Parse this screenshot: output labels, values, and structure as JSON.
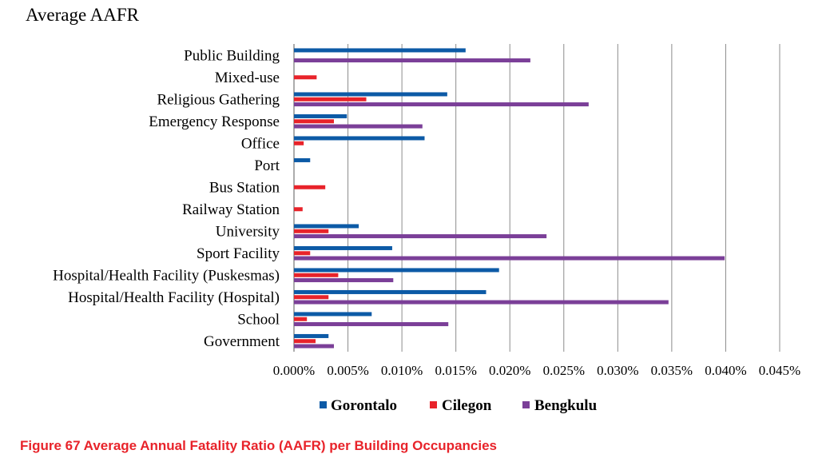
{
  "caption": "Figure 67 Average Annual Fatality Ratio (AAFR) per Building Occupancies",
  "chart_data": {
    "type": "bar",
    "orientation": "horizontal",
    "title": "Average AAFR",
    "xlim": [
      0,
      0.045
    ],
    "xticks": [
      0,
      0.005,
      0.01,
      0.015,
      0.02,
      0.025,
      0.03,
      0.035,
      0.04,
      0.045
    ],
    "xtick_labels": [
      "0.000%",
      "0.005%",
      "0.010%",
      "0.015%",
      "0.020%",
      "0.025%",
      "0.030%",
      "0.035%",
      "0.040%",
      "0.045%"
    ],
    "grid": "vertical",
    "legend_position": "bottom",
    "categories": [
      "Public Building",
      "Mixed-use",
      "Religious Gathering",
      "Emergency Response",
      "Office",
      "Port",
      "Bus Station",
      "Railway Station",
      "University",
      "Sport Facility",
      "Hospital/Health Facility (Puskesmas)",
      "Hospital/Health Facility (Hospital)",
      "School",
      "Government"
    ],
    "series": [
      {
        "name": "Gorontalo",
        "color": "#0c5aa6",
        "values": [
          0.0159,
          0,
          0.0142,
          0.0049,
          0.0121,
          0.0015,
          0,
          0,
          0.006,
          0.0091,
          0.019,
          0.0178,
          0.0072,
          0.0032
        ]
      },
      {
        "name": "Cilegon",
        "color": "#e8232a",
        "values": [
          0,
          0.0021,
          0.0067,
          0.0037,
          0.0009,
          0,
          0.0029,
          0.0008,
          0.0032,
          0.0015,
          0.0041,
          0.0032,
          0.0012,
          0.002
        ]
      },
      {
        "name": "Bengkulu",
        "color": "#7b3f98",
        "values": [
          0.0219,
          0,
          0.0273,
          0.0119,
          0,
          0,
          0,
          0,
          0.0234,
          0.0399,
          0.0092,
          0.0347,
          0.0143,
          0.0037
        ]
      }
    ]
  }
}
